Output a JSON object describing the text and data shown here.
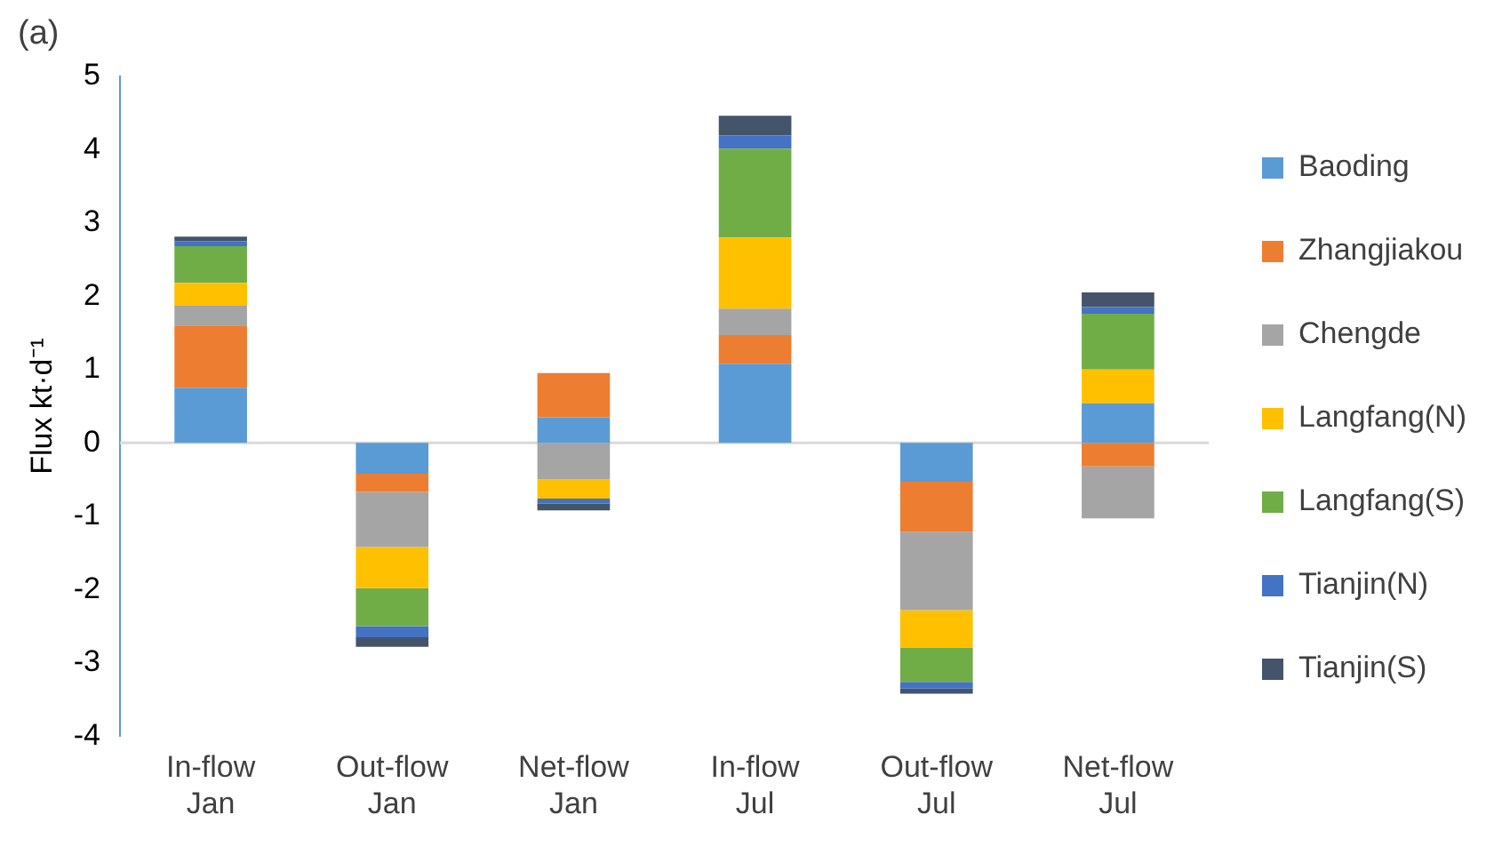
{
  "chart_data": {
    "type": "bar",
    "title": "(a)",
    "ylabel": "Flux kt·d⁻¹",
    "stacked": true,
    "legend": "right",
    "grid": false,
    "categories": [
      "In-flow\nJan",
      "Out-flow\nJan",
      "Net-flow\nJan",
      "In-flow\nJul",
      "Out-flow\nJul",
      "Net-flow\nJul"
    ],
    "ref_lines": [
      {
        "axis": "y",
        "value": 0,
        "color": "#d9d9d9"
      }
    ],
    "ylim": [
      -4,
      5
    ],
    "yticks": [
      -4,
      -3,
      -2,
      -1,
      0,
      1,
      2,
      3,
      4,
      5
    ],
    "series": [
      {
        "name": "Baoding",
        "color": "#5b9bd5",
        "values": [
          0.75,
          -0.42,
          0.35,
          1.08,
          -0.53,
          0.54
        ]
      },
      {
        "name": "Zhangjiakou",
        "color": "#ed7d31",
        "values": [
          0.85,
          -0.25,
          0.6,
          0.39,
          -0.68,
          -0.32
        ]
      },
      {
        "name": "Chengde",
        "color": "#a5a5a5",
        "values": [
          0.27,
          -0.75,
          -0.5,
          0.36,
          -1.07,
          -0.71
        ]
      },
      {
        "name": "Langfang(N)",
        "color": "#ffc000",
        "values": [
          0.31,
          -0.56,
          -0.26,
          0.97,
          -0.51,
          0.46
        ]
      },
      {
        "name": "Langfang(S)",
        "color": "#70ad47",
        "values": [
          0.5,
          -0.52,
          0,
          1.21,
          -0.47,
          0.76
        ]
      },
      {
        "name": "Tianjin(N)",
        "color": "#4472c4",
        "values": [
          0.07,
          -0.15,
          -0.07,
          0.18,
          -0.09,
          0.09
        ]
      },
      {
        "name": "Tianjin(S)",
        "color": "#44546a",
        "values": [
          0.06,
          -0.13,
          -0.09,
          0.27,
          -0.07,
          0.2
        ]
      }
    ]
  }
}
